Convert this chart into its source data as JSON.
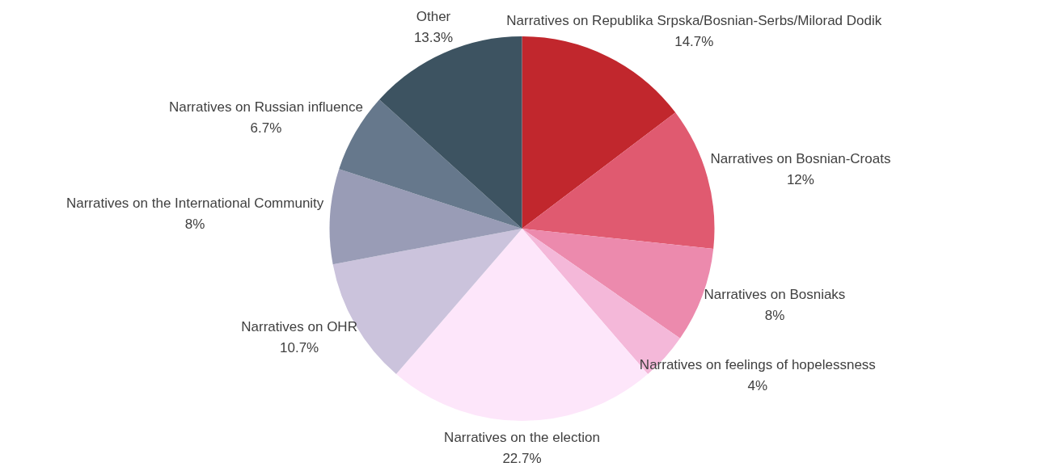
{
  "chart_data": {
    "type": "pie",
    "categories": [
      "Narratives on Republika Srpska/Bosnian-Serbs/Milorad Dodik",
      "Narratives on Bosnian-Croats",
      "Narratives on Bosniaks",
      "Narratives on feelings of hopelessness",
      "Narratives on the election",
      "Narratives on OHR",
      "Narratives on the International Community",
      "Narratives on Russian influence",
      "Other"
    ],
    "values": [
      14.7,
      12,
      8,
      4,
      22.7,
      10.7,
      8,
      6.7,
      13.3
    ],
    "value_labels": [
      "14.7%",
      "12%",
      "8%",
      "4%",
      "22.7%",
      "10.7%",
      "8%",
      "6.7%",
      "13.3%"
    ],
    "colors": [
      "#c1272d",
      "#e05a70",
      "#ec8aad",
      "#f4b8d9",
      "#fde6fa",
      "#cbc3dc",
      "#999cb6",
      "#66788c",
      "#3d5361"
    ],
    "legend": false
  }
}
